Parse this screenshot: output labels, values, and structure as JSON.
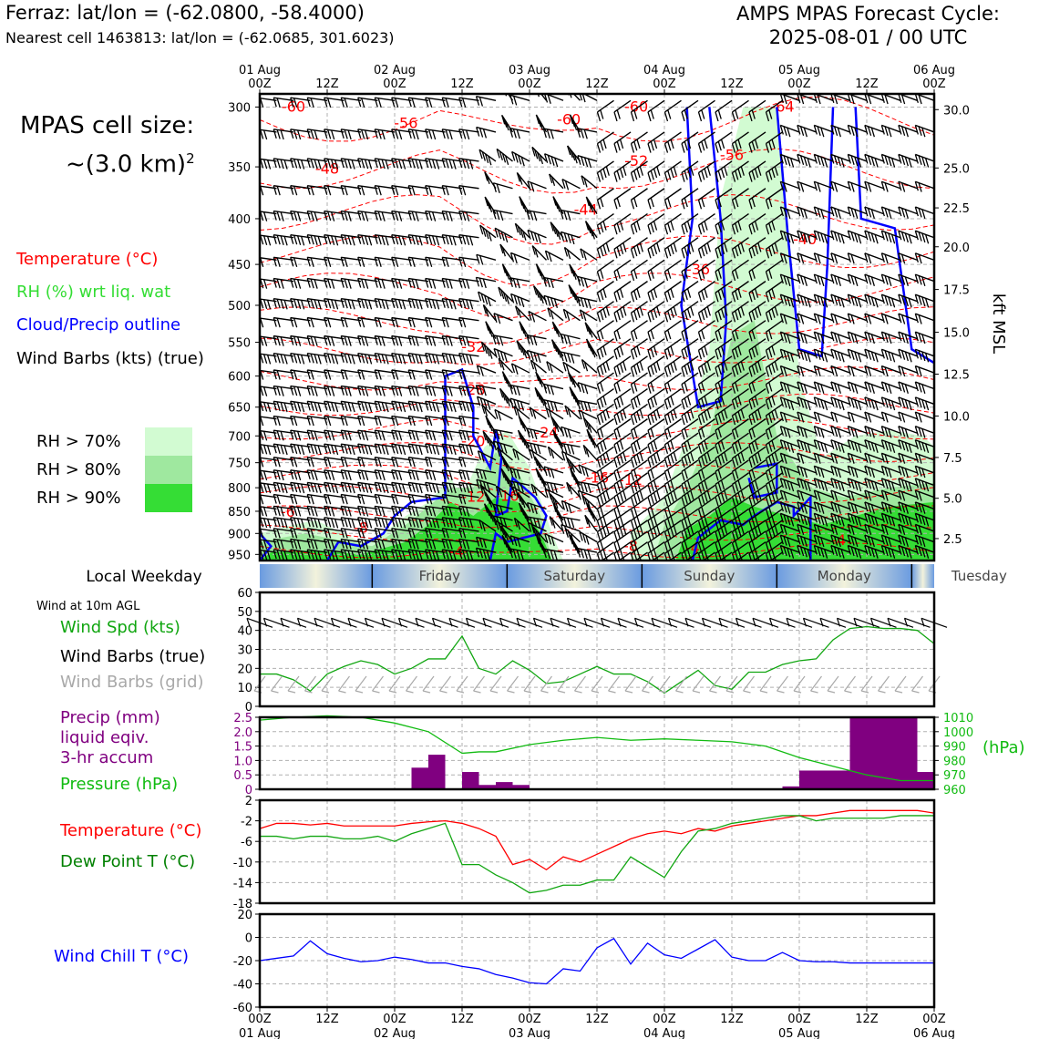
{
  "header": {
    "location": "Ferraz: lat/lon = (-62.0800, -58.4000)",
    "nearest_cell": "Nearest cell 1463813: lat/lon = (-62.0685, 301.6023)",
    "cycle_line1": "AMPS MPAS Forecast Cycle:",
    "cycle_line2": "2025-08-01 / 00 UTC"
  },
  "cell_size": {
    "line1": "MPAS cell size:",
    "line2": "~(3.0 km)",
    "sup": "2"
  },
  "legend": {
    "temperature": "Temperature (°C)",
    "rh": "RH (%) wrt liq. wat",
    "cloud": "Cloud/Precip outline",
    "wind": "Wind Barbs (kts) (true)",
    "rh70": "RH > 70%",
    "rh80": "RH > 80%",
    "rh90": "RH > 90%"
  },
  "colors": {
    "temp": "#ff0000",
    "rh_green": "#11a611",
    "cloud": "#0000ff",
    "precip": "#800080",
    "pressure": "#11bb11",
    "rh70": "#d2fbd2",
    "rh80": "#9fe89f",
    "rh90": "#35dd35",
    "grid_barb": "#a9a9a9"
  },
  "time_axis": {
    "top_labels": [
      {
        "hour": 0,
        "line1": "01 Aug",
        "line2": "00Z"
      },
      {
        "hour": 12,
        "line1": "",
        "line2": "12Z"
      },
      {
        "hour": 24,
        "line1": "02 Aug",
        "line2": "00Z"
      },
      {
        "hour": 36,
        "line1": "",
        "line2": "12Z"
      },
      {
        "hour": 48,
        "line1": "03 Aug",
        "line2": "00Z"
      },
      {
        "hour": 60,
        "line1": "",
        "line2": "12Z"
      },
      {
        "hour": 72,
        "line1": "04 Aug",
        "line2": "00Z"
      },
      {
        "hour": 84,
        "line1": "",
        "line2": "12Z"
      },
      {
        "hour": 96,
        "line1": "05 Aug",
        "line2": "00Z"
      },
      {
        "hour": 108,
        "line1": "",
        "line2": "12Z"
      },
      {
        "hour": 120,
        "line1": "06 Aug",
        "line2": "00Z"
      }
    ],
    "range_hours": [
      0,
      120
    ]
  },
  "weekday_bar": {
    "title": "Local Weekday",
    "days": [
      "Friday",
      "Saturday",
      "Sunday",
      "Monday",
      "Tuesday"
    ]
  },
  "chart_data": [
    {
      "type": "heatmap",
      "panel": "vertical cross-section",
      "yaxis_left": {
        "label": "",
        "ticks": [
          300,
          350,
          400,
          450,
          500,
          550,
          600,
          650,
          700,
          750,
          800,
          850,
          900,
          950
        ],
        "range": [
          300,
          950
        ],
        "units": "hPa"
      },
      "yaxis_right": {
        "label": "kft MSL",
        "ticks": [
          "30.0",
          "25.0",
          "22.5",
          "20.0",
          "17.5",
          "15.0",
          "12.5",
          "10.0",
          "7.5",
          "5.0",
          "2.5"
        ],
        "tick_pressures": [
          302,
          351,
          389,
          430,
          480,
          536,
          597,
          665,
          740,
          822,
          912
        ]
      },
      "temperature_labels": [
        {
          "t": 6,
          "p": 300,
          "text": "-60"
        },
        {
          "t": 26,
          "p": 313,
          "text": "-56"
        },
        {
          "t": 12,
          "p": 352,
          "text": "-48"
        },
        {
          "t": 55,
          "p": 310,
          "text": "-60"
        },
        {
          "t": 67,
          "p": 300,
          "text": "-60"
        },
        {
          "t": 67,
          "p": 345,
          "text": "-52"
        },
        {
          "t": 84,
          "p": 340,
          "text": "-56"
        },
        {
          "t": 93,
          "p": 300,
          "text": "-64"
        },
        {
          "t": 58,
          "p": 391,
          "text": "-44"
        },
        {
          "t": 97,
          "p": 422,
          "text": "-40"
        },
        {
          "t": 78,
          "p": 456,
          "text": "-36"
        },
        {
          "t": 38,
          "p": 557,
          "text": "-32"
        },
        {
          "t": 38,
          "p": 622,
          "text": "-28"
        },
        {
          "t": 38,
          "p": 710,
          "text": "-20"
        },
        {
          "t": 51,
          "p": 695,
          "text": "-24"
        },
        {
          "t": 60,
          "p": 780,
          "text": "-16"
        },
        {
          "t": 66,
          "p": 785,
          "text": "-12"
        },
        {
          "t": 38,
          "p": 820,
          "text": "-12"
        },
        {
          "t": 44,
          "p": 818,
          "text": "-16"
        },
        {
          "t": 5,
          "p": 852,
          "text": "-6"
        },
        {
          "t": 18,
          "p": 888,
          "text": "-8"
        },
        {
          "t": 35,
          "p": 945,
          "text": "-4"
        },
        {
          "t": 66,
          "p": 930,
          "text": "-8"
        },
        {
          "t": 77,
          "p": 935,
          "text": "-4"
        },
        {
          "t": 103,
          "p": 916,
          "text": "-4"
        }
      ],
      "rh_thresholds": [
        70,
        80,
        90
      ],
      "cloud_outline": "present",
      "wind_barbs": "present"
    },
    {
      "type": "line",
      "panel": "Wind at 10m AGL",
      "title": "Wind at 10m AGL",
      "ylabel": "",
      "ylim": [
        0,
        60
      ],
      "yticks": [
        0,
        10,
        20,
        30,
        40,
        50,
        60
      ],
      "x": [
        0,
        3,
        6,
        9,
        12,
        15,
        18,
        21,
        24,
        27,
        30,
        33,
        36,
        39,
        42,
        45,
        48,
        51,
        54,
        57,
        60,
        63,
        66,
        69,
        72,
        75,
        78,
        81,
        84,
        87,
        90,
        93,
        96,
        99,
        102,
        105,
        108,
        111,
        114,
        117,
        120
      ],
      "series": [
        {
          "name": "Wind Spd (kts)",
          "values": [
            17,
            17,
            14,
            8,
            17,
            21,
            24,
            22,
            17,
            20,
            25,
            25,
            37,
            20,
            17,
            24,
            19,
            12,
            13,
            17,
            21,
            17,
            17,
            13,
            7,
            13,
            19,
            11,
            9,
            18,
            18,
            22,
            24,
            25,
            35,
            41,
            42,
            41,
            41,
            40,
            33
          ]
        }
      ],
      "legend": [
        "Wind Spd (kts)",
        "Wind Barbs (true)",
        "Wind Barbs (grid)"
      ]
    },
    {
      "type": "bar",
      "panel": "Precip / Pressure",
      "ylabel": "",
      "ylim": [
        0,
        2.5
      ],
      "yticks": [
        0,
        0.5,
        1.0,
        1.5,
        2.0,
        2.5
      ],
      "y2lim": [
        960,
        1010
      ],
      "y2ticks": [
        960,
        970,
        980,
        990,
        1000,
        1010
      ],
      "y2label": "(hPa)",
      "bar_start_hours": [
        27,
        30,
        36,
        39,
        42,
        45,
        93,
        96,
        99,
        102,
        105,
        108,
        111,
        114,
        117
      ],
      "bar_width_hours": 3,
      "precip_values": [
        0.75,
        1.2,
        0.6,
        0.15,
        0.25,
        0.15,
        0.1,
        0.65,
        0.65,
        0.65,
        2.5,
        2.5,
        2.5,
        2.5,
        0.6
      ],
      "x": [
        0,
        6,
        12,
        18,
        24,
        30,
        36,
        39,
        42,
        48,
        54,
        60,
        66,
        72,
        78,
        84,
        90,
        96,
        102,
        108,
        114,
        120
      ],
      "pressure_values": [
        1008,
        1010,
        1011,
        1010,
        1006,
        1000,
        985,
        986,
        986,
        991,
        994,
        996,
        994,
        995,
        994,
        993,
        990,
        982,
        976,
        970,
        966,
        966
      ],
      "legend": [
        "Precip (mm) liquid eqiv. 3-hr accum",
        "Pressure (hPa)"
      ]
    },
    {
      "type": "line",
      "panel": "Temperature / Dew Point",
      "ylabel": "",
      "ylim": [
        -18,
        2
      ],
      "yticks": [
        2,
        -2,
        -6,
        -10,
        -14,
        -18
      ],
      "x": [
        0,
        3,
        6,
        9,
        12,
        15,
        18,
        21,
        24,
        27,
        30,
        33,
        36,
        39,
        42,
        45,
        48,
        51,
        54,
        57,
        60,
        63,
        66,
        69,
        72,
        75,
        78,
        81,
        84,
        87,
        90,
        93,
        96,
        99,
        102,
        105,
        108,
        111,
        114,
        117,
        120
      ],
      "series": [
        {
          "name": "Temperature (°C)",
          "values": [
            -3.5,
            -2.5,
            -2.5,
            -2.8,
            -2.5,
            -3.0,
            -3.0,
            -3.0,
            -3.0,
            -2.5,
            -2.2,
            -2.0,
            -2.5,
            -3.5,
            -5.0,
            -10.5,
            -9.5,
            -11.5,
            -9.0,
            -10.0,
            -8.5,
            -7.0,
            -5.5,
            -4.5,
            -4.0,
            -4.5,
            -3.5,
            -4.0,
            -3.0,
            -2.5,
            -2.0,
            -1.5,
            -1.0,
            -1.0,
            -0.5,
            0.0,
            0.0,
            0.0,
            0.0,
            0.0,
            -0.5
          ]
        },
        {
          "name": "Dew Point T (°C)",
          "values": [
            -5.0,
            -5.0,
            -5.5,
            -5.0,
            -5.0,
            -5.5,
            -5.5,
            -5.0,
            -6.0,
            -4.5,
            -3.5,
            -2.5,
            -10.5,
            -10.5,
            -12.5,
            -14.0,
            -16.0,
            -15.5,
            -14.5,
            -14.5,
            -13.5,
            -13.5,
            -9.0,
            -11.0,
            -13.0,
            -8.0,
            -4.0,
            -3.5,
            -2.5,
            -2.0,
            -1.5,
            -1.0,
            -1.0,
            -2.0,
            -1.5,
            -1.5,
            -1.5,
            -1.5,
            -1.0,
            -1.0,
            -1.0
          ]
        }
      ]
    },
    {
      "type": "line",
      "panel": "Wind Chill",
      "ylabel": "",
      "ylim": [
        -60,
        20
      ],
      "yticks": [
        20,
        0,
        -20,
        -40,
        -60
      ],
      "x": [
        0,
        3,
        6,
        9,
        12,
        15,
        18,
        21,
        24,
        27,
        30,
        33,
        36,
        39,
        42,
        45,
        48,
        51,
        54,
        57,
        60,
        63,
        66,
        69,
        72,
        75,
        78,
        81,
        84,
        87,
        90,
        93,
        96,
        99,
        102,
        105,
        108,
        111,
        114,
        117,
        120
      ],
      "series": [
        {
          "name": "Wind Chill T (°C)",
          "values": [
            -20,
            -18,
            -16,
            -3,
            -14,
            -18,
            -21,
            -20,
            -17,
            -19,
            -22,
            -22,
            -25,
            -27,
            -32,
            -35,
            -39,
            -40,
            -27,
            -29,
            -9,
            -1,
            -23,
            -5,
            -15,
            -18,
            -10,
            -2,
            -17,
            -20,
            -20,
            -13,
            -20,
            -21,
            -21,
            -22,
            -22,
            -22,
            -22,
            -22,
            -22
          ]
        }
      ]
    }
  ]
}
